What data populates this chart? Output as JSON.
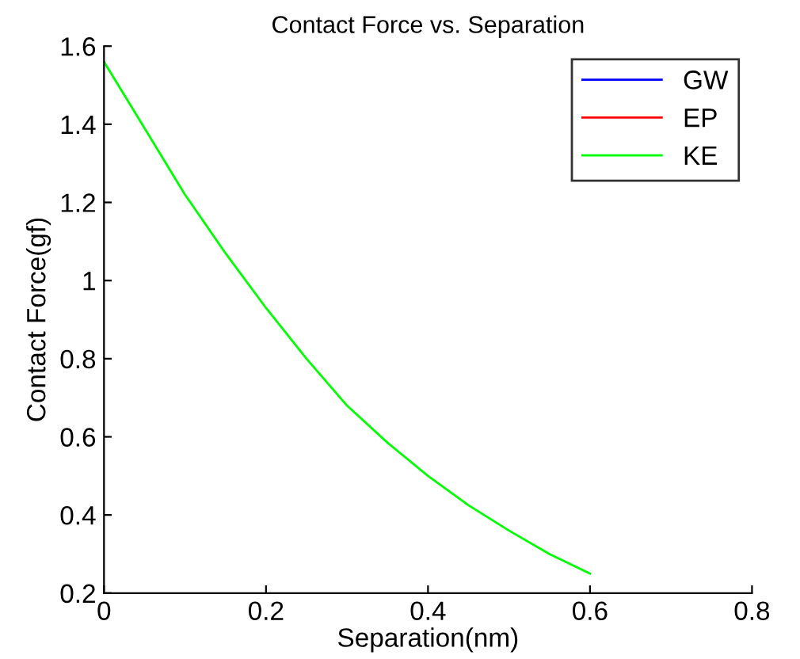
{
  "chart_data": {
    "type": "line",
    "title": "Contact Force vs. Separation",
    "xlabel": "Separation(nm)",
    "ylabel": "Contact Force(gf)",
    "x": [
      0,
      0.05,
      0.1,
      0.15,
      0.2,
      0.25,
      0.3,
      0.35,
      0.4,
      0.45,
      0.5,
      0.55,
      0.6
    ],
    "series": [
      {
        "name": "GW",
        "color": "#0000ff",
        "values": [
          null,
          null,
          null,
          null,
          null,
          null,
          null,
          null,
          null,
          null,
          null,
          null,
          null
        ]
      },
      {
        "name": "EP",
        "color": "#ff0000",
        "values": [
          null,
          null,
          null,
          null,
          null,
          null,
          null,
          null,
          null,
          null,
          null,
          null,
          null
        ]
      },
      {
        "name": "KE",
        "color": "#00ff00",
        "values": [
          1.56,
          1.39,
          1.22,
          1.07,
          0.93,
          0.8,
          0.68,
          0.585,
          0.5,
          0.425,
          0.36,
          0.3,
          0.25
        ]
      }
    ],
    "xlim": [
      0,
      0.8
    ],
    "xticks": [
      0,
      0.2,
      0.4,
      0.6,
      0.8
    ],
    "ylim": [
      0.2,
      1.6
    ],
    "yticks": [
      0.2,
      0.4,
      0.6,
      0.8,
      1,
      1.2,
      1.4,
      1.6
    ],
    "grid": false,
    "legend": "top right",
    "line_style": "solid",
    "marker": "none"
  }
}
